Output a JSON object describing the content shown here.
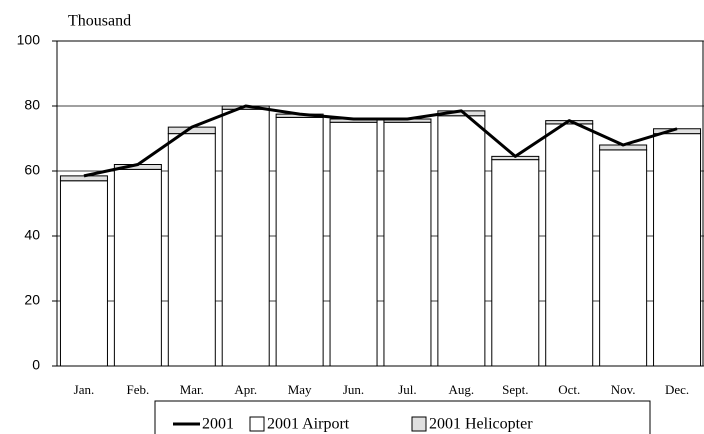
{
  "chart_data": {
    "type": "bar",
    "y_label": "Thousand",
    "categories": [
      "Jan.",
      "Feb.",
      "Mar.",
      "Apr.",
      "May",
      "Jun.",
      "Jul.",
      "Aug.",
      "Sept.",
      "Oct.",
      "Nov.",
      "Dec."
    ],
    "series": [
      {
        "name": "2001",
        "type": "line",
        "color": "#000000",
        "values": [
          58.5,
          62,
          73.5,
          80,
          77.5,
          76,
          76,
          78.5,
          64.5,
          75.5,
          68,
          73
        ]
      },
      {
        "name": "2001 Airport",
        "type": "bar",
        "color": "#ffffff",
        "values": [
          57,
          60.5,
          71.5,
          79,
          76.5,
          75,
          75,
          77,
          63.5,
          74.5,
          66.5,
          71.5
        ]
      },
      {
        "name": "2001 Helicopter",
        "type": "bar",
        "color": "#e0e0e0",
        "values": [
          1.5,
          1.5,
          2,
          1,
          1,
          1,
          1,
          1.5,
          1,
          1,
          1.5,
          1.5
        ]
      }
    ],
    "ylim": [
      0,
      100
    ],
    "yticks": [
      0,
      20,
      40,
      60,
      80,
      100
    ],
    "grid": true,
    "stacked": true,
    "legend": "bottom"
  }
}
